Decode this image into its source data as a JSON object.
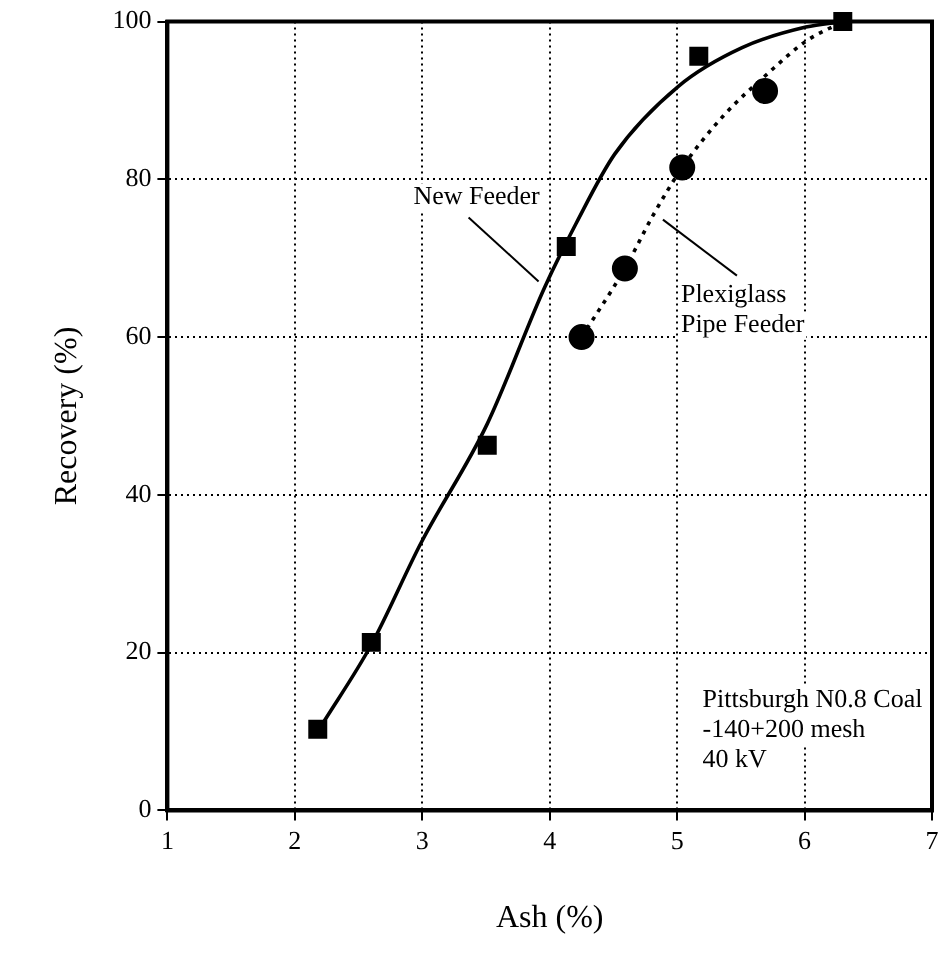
{
  "chart_data": {
    "type": "scatter",
    "xlabel": "Ash (%)",
    "ylabel": "Recovery (%)",
    "xlim": [
      1,
      7
    ],
    "xticks": [
      1,
      2,
      3,
      4,
      5,
      6,
      7
    ],
    "ylim": [
      0,
      100
    ],
    "yticks": [
      0,
      20,
      40,
      60,
      80,
      100
    ],
    "grid": true,
    "legend": false,
    "annotations": [
      {
        "text": "New Feeder",
        "x": 3.96,
        "y": 66.3
      },
      {
        "text": "Plexiglass Pipe Feeder",
        "x": 4.81,
        "y": 75.4
      },
      "Pittsburgh N0.8 Coal",
      "-140+200 mesh",
      "40 kV"
    ],
    "series": [
      {
        "type": "scatter",
        "marker": "square",
        "color": "#000000",
        "x": [
          2.18,
          2.6,
          3.51,
          4.13,
          5.17,
          6.3
        ],
        "values": [
          10.3,
          21.3,
          46.3,
          71.5,
          95.6,
          100
        ]
      },
      {
        "type": "scatter",
        "marker": "circle",
        "color": "#000000",
        "x": [
          4.25,
          4.59,
          5.04,
          5.69
        ],
        "values": [
          60,
          68.7,
          81.5,
          91.2
        ]
      },
      {
        "type": "line",
        "line_style": "solid",
        "marker": "none",
        "color": "#000000",
        "x": [
          2.21,
          2.6,
          2.99,
          3.51,
          3.96,
          4.21,
          4.51,
          5.01,
          5.51,
          6.01,
          6.3
        ],
        "values": [
          10.8,
          21,
          33.9,
          49,
          66.3,
          74.5,
          83.2,
          91.8,
          96.7,
          99.3,
          100
        ]
      },
      {
        "type": "line",
        "line_style": "dotted",
        "marker": "none",
        "color": "#000000",
        "x": [
          4.25,
          4.59,
          4.81,
          5.04,
          5.36,
          5.71,
          6.01,
          6.3
        ],
        "values": [
          60,
          68.7,
          75.4,
          81.5,
          88,
          93.4,
          97.5,
          100
        ]
      }
    ]
  }
}
